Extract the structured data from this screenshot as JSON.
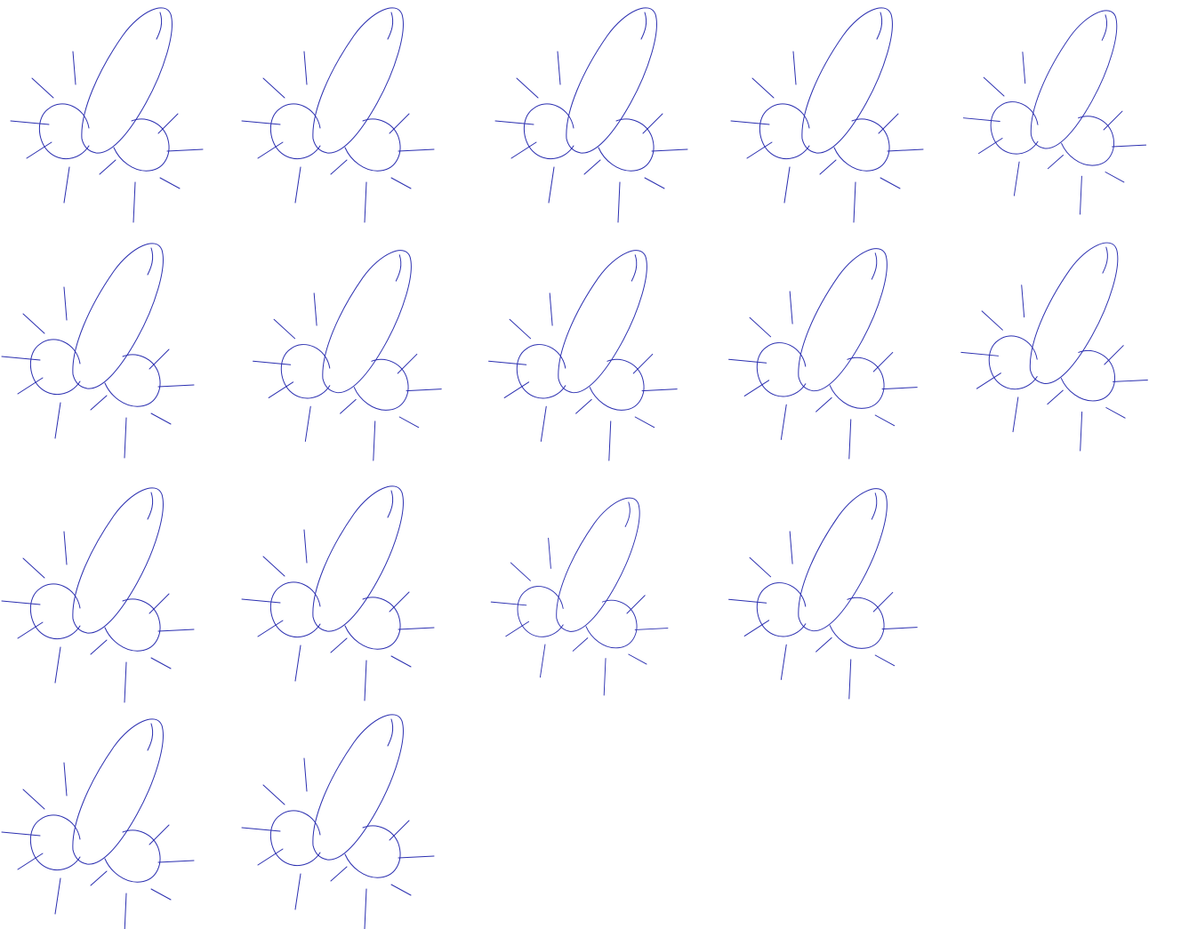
{
  "sheet": {
    "background": "#ffffff",
    "ink_color": "#2b2fb0",
    "doodle_count": 16,
    "rows": [
      {
        "count": 5
      },
      {
        "count": 5
      },
      {
        "count": 4
      },
      {
        "count": 2
      }
    ]
  }
}
